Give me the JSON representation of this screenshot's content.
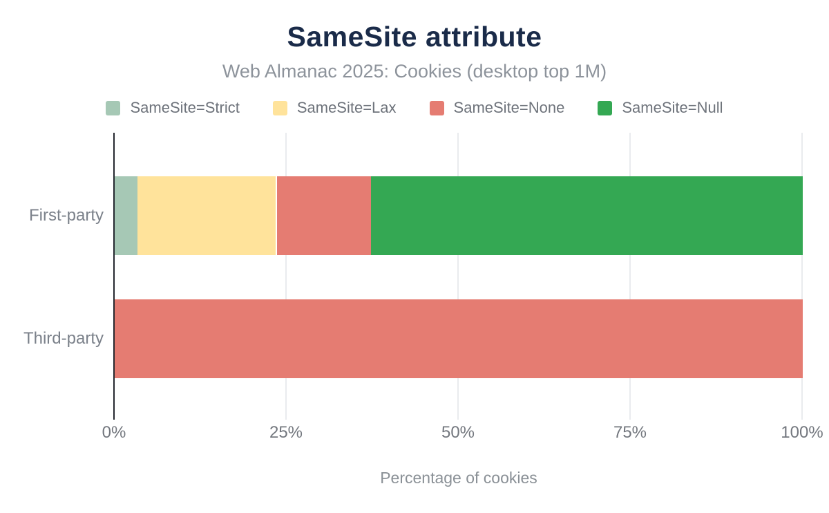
{
  "chart_data": {
    "type": "bar",
    "orientation": "horizontal",
    "stacked": true,
    "title": "SameSite attribute",
    "subtitle": "Web Almanac 2025: Cookies (desktop top 1M)",
    "xlabel": "Percentage of cookies",
    "categories": [
      "First-party",
      "Third-party"
    ],
    "series": [
      {
        "name": "SameSite=Strict",
        "color": "#a6c8b5",
        "values": [
          3.3,
          0
        ]
      },
      {
        "name": "SameSite=Lax",
        "color": "#ffe39b",
        "values": [
          20.1,
          0
        ]
      },
      {
        "name": "SameSite=None",
        "color": "#e57c72",
        "values": [
          13.9,
          100
        ]
      },
      {
        "name": "SameSite=Null",
        "color": "#34a853",
        "values": [
          62.7,
          0
        ]
      }
    ],
    "xlim": [
      0,
      100
    ],
    "xtick_values": [
      0,
      25,
      50,
      75,
      100
    ],
    "xtick_labels": [
      "0%",
      "25%",
      "50%",
      "75%",
      "100%"
    ],
    "legend_position": "top",
    "grid": true,
    "theme": {
      "title_color": "#1a2b49",
      "subtitle_color": "#8d939b",
      "axis_line_color": "#24272e",
      "gridline_color": "#e9ebee",
      "tick_label_color": "#73777e",
      "background": "#ffffff"
    }
  }
}
